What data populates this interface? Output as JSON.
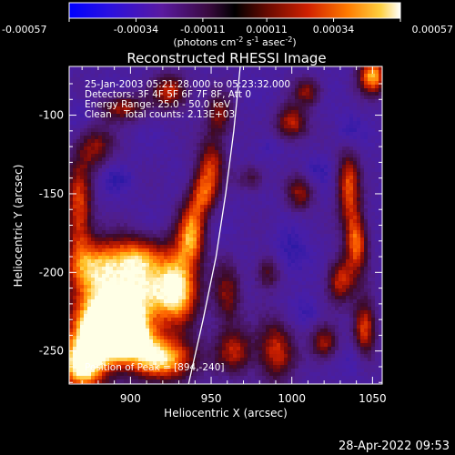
{
  "chart_data": {
    "type": "heatmap",
    "title": "Reconstructed RHESSI Image",
    "xlabel": "Heliocentric X (arcsec)",
    "ylabel": "Heliocentric Y (arcsec)",
    "xlim": [
      862,
      1056
    ],
    "ylim": [
      -271,
      -69
    ],
    "xticks": [
      900,
      950,
      1000,
      1050
    ],
    "yticks": [
      -100,
      -150,
      -200,
      -250
    ],
    "colorbar": {
      "range": [
        -0.00057,
        0.00057
      ],
      "tick_values": [
        -0.00057,
        -0.00034,
        -0.00011,
        0.00011,
        0.00034,
        0.00057
      ],
      "tick_labels": [
        "-0.00057",
        "-0.00034",
        "-0.00011",
        "0.00011",
        "0.00034",
        "0.00057"
      ],
      "units_label_parts": [
        "(photons cm",
        "-2",
        " s",
        "-1",
        " asec",
        "-2",
        ")"
      ]
    },
    "annotations": {
      "time_range": "25-Jan-2003 05:21:28.000 to 05:23:32.000",
      "detectors": "Detectors: 3F 4F 5F 6F 7F 8F, Att 0",
      "energy": "Energy Range: 25.0 - 50.0 keV",
      "clean": "Clean    Total counts: 2.13E+03",
      "peak": "Position of Peak = [894,-240]"
    },
    "peak_position": [
      894,
      -240
    ],
    "limb_curve": [
      [
        936,
        -271
      ],
      [
        945,
        -230
      ],
      [
        953,
        -190
      ],
      [
        959,
        -150
      ],
      [
        964,
        -110
      ],
      [
        968,
        -69
      ]
    ],
    "intensity_blobs": [
      {
        "x": 894,
        "y": -240,
        "v": 1.0,
        "sx": 12,
        "sy": 10
      },
      {
        "x": 880,
        "y": -232,
        "v": 0.75,
        "sx": 14,
        "sy": 18
      },
      {
        "x": 910,
        "y": -215,
        "v": 0.65,
        "sx": 18,
        "sy": 14
      },
      {
        "x": 920,
        "y": -255,
        "v": 0.7,
        "sx": 15,
        "sy": 10
      },
      {
        "x": 870,
        "y": -260,
        "v": 0.7,
        "sx": 10,
        "sy": 12
      },
      {
        "x": 880,
        "y": -195,
        "v": 0.5,
        "sx": 14,
        "sy": 12
      },
      {
        "x": 905,
        "y": -190,
        "v": 0.45,
        "sx": 12,
        "sy": 10
      },
      {
        "x": 930,
        "y": -205,
        "v": 0.5,
        "sx": 8,
        "sy": 18
      },
      {
        "x": 938,
        "y": -175,
        "v": 0.55,
        "sx": 6,
        "sy": 14
      },
      {
        "x": 945,
        "y": -150,
        "v": 0.45,
        "sx": 6,
        "sy": 10
      },
      {
        "x": 950,
        "y": -130,
        "v": 0.4,
        "sx": 6,
        "sy": 12
      },
      {
        "x": 955,
        "y": -100,
        "v": 0.35,
        "sx": 6,
        "sy": 10
      },
      {
        "x": 868,
        "y": -160,
        "v": 0.5,
        "sx": 6,
        "sy": 22
      },
      {
        "x": 878,
        "y": -120,
        "v": 0.35,
        "sx": 8,
        "sy": 10
      },
      {
        "x": 895,
        "y": -95,
        "v": 0.4,
        "sx": 10,
        "sy": 6
      },
      {
        "x": 925,
        "y": -85,
        "v": 0.45,
        "sx": 8,
        "sy": 8
      },
      {
        "x": 960,
        "y": -215,
        "v": 0.35,
        "sx": 6,
        "sy": 14
      },
      {
        "x": 965,
        "y": -250,
        "v": 0.4,
        "sx": 8,
        "sy": 10
      },
      {
        "x": 990,
        "y": -250,
        "v": 0.45,
        "sx": 8,
        "sy": 14
      },
      {
        "x": 1000,
        "y": -105,
        "v": 0.45,
        "sx": 7,
        "sy": 8
      },
      {
        "x": 1010,
        "y": -85,
        "v": 0.35,
        "sx": 6,
        "sy": 6
      },
      {
        "x": 1005,
        "y": -150,
        "v": 0.35,
        "sx": 6,
        "sy": 8
      },
      {
        "x": 1035,
        "y": -145,
        "v": 0.5,
        "sx": 5,
        "sy": 16
      },
      {
        "x": 1040,
        "y": -180,
        "v": 0.55,
        "sx": 5,
        "sy": 14
      },
      {
        "x": 1030,
        "y": -205,
        "v": 0.45,
        "sx": 6,
        "sy": 10
      },
      {
        "x": 1045,
        "y": -235,
        "v": 0.5,
        "sx": 5,
        "sy": 14
      },
      {
        "x": 1050,
        "y": -75,
        "v": 0.65,
        "sx": 6,
        "sy": 8
      },
      {
        "x": 1020,
        "y": -245,
        "v": 0.4,
        "sx": 6,
        "sy": 8
      },
      {
        "x": 985,
        "y": -200,
        "v": 0.3,
        "sx": 6,
        "sy": 8
      },
      {
        "x": 975,
        "y": -140,
        "v": 0.25,
        "sx": 6,
        "sy": 6
      }
    ],
    "dark_blobs": [
      {
        "x": 1000,
        "y": -190,
        "v": 0.6,
        "sx": 8,
        "sy": 10
      },
      {
        "x": 1040,
        "y": -255,
        "v": 0.55,
        "sx": 6,
        "sy": 8
      },
      {
        "x": 1035,
        "y": -110,
        "v": 0.5,
        "sx": 6,
        "sy": 8
      },
      {
        "x": 890,
        "y": -140,
        "v": 0.45,
        "sx": 8,
        "sy": 6
      },
      {
        "x": 1015,
        "y": -135,
        "v": 0.45,
        "sx": 6,
        "sy": 6
      },
      {
        "x": 1010,
        "y": -225,
        "v": 0.4,
        "sx": 6,
        "sy": 6
      },
      {
        "x": 985,
        "y": -120,
        "v": 0.35,
        "sx": 6,
        "sy": 6
      },
      {
        "x": 870,
        "y": -100,
        "v": 0.4,
        "sx": 6,
        "sy": 8
      }
    ]
  },
  "footer": {
    "timestamp": "28-Apr-2022 09:53"
  }
}
